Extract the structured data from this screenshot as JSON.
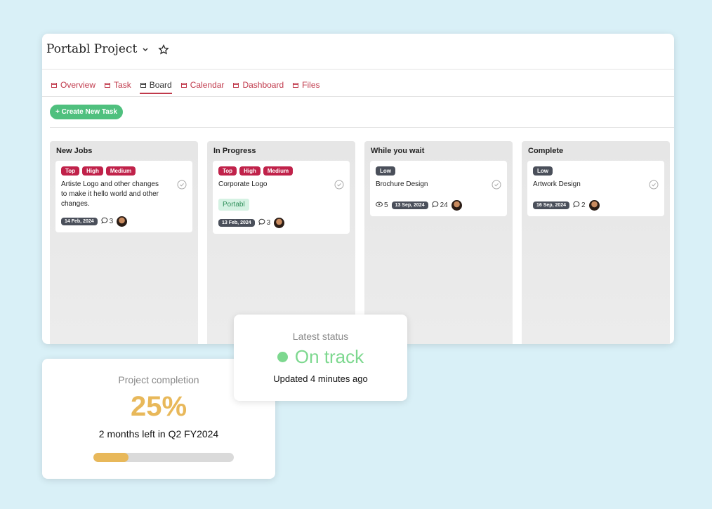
{
  "header": {
    "title": "Portabl Project"
  },
  "tabs": [
    "Overview",
    "Task",
    "Board",
    "Calendar",
    "Dashboard",
    "Files"
  ],
  "button": "+ Create New Task",
  "columns": [
    {
      "title": "New Jobs",
      "cards": [
        {
          "tags": [
            "Top",
            "High",
            "Medium"
          ],
          "title": "Artiste Logo and other changes to make it hello world and other changes.",
          "date": "14 Feb, 2024",
          "comments": 3
        }
      ]
    },
    {
      "title": "In Progress",
      "cards": [
        {
          "tags": [
            "Top",
            "High",
            "Medium"
          ],
          "title": "Corporate Logo",
          "label": "Portabl",
          "date": "13 Feb, 2024",
          "comments": 3
        }
      ]
    },
    {
      "title": "While you wait",
      "cards": [
        {
          "tags": [
            "Low"
          ],
          "title": "Brochure Design",
          "views": 5,
          "date": "13 Sep, 2024",
          "comments": 24
        }
      ]
    },
    {
      "title": "Complete",
      "cards": [
        {
          "tags": [
            "Low"
          ],
          "title": "Artwork Design",
          "date": "16 Sep, 2024",
          "comments": 2
        }
      ]
    }
  ],
  "completion": {
    "title": "Project completion",
    "value": 25,
    "label": "25%",
    "note": "2 months left in Q2 FY2024"
  },
  "status": {
    "title": "Latest status",
    "state": "On track",
    "updated": "Updated 4 minutes ago"
  }
}
